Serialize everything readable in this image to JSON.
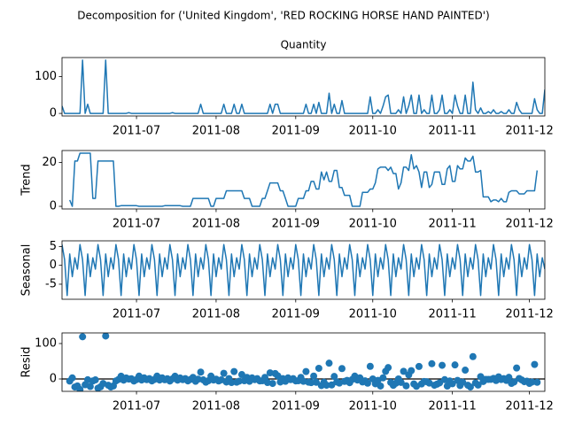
{
  "chart_data": [
    {
      "type": "line",
      "title": "Decomposition for ('United Kingdom', 'RED ROCKING HORSE HAND PAINTED')",
      "axes_title": "Quantity",
      "color": "#1f77b4",
      "x": [
        1,
        2,
        3,
        4,
        5,
        6,
        7,
        8,
        9,
        10,
        11,
        12,
        13,
        14,
        15,
        16,
        17,
        18,
        19,
        20,
        21,
        22,
        23,
        24,
        25,
        26,
        27,
        28,
        29,
        30,
        31,
        32,
        33,
        34,
        35,
        36,
        37,
        38,
        39,
        40,
        41,
        42,
        43,
        44,
        45,
        46,
        47,
        48,
        49,
        50,
        51,
        52,
        53,
        54,
        55,
        56,
        57,
        58,
        59,
        60,
        61,
        62,
        63,
        64,
        65,
        66,
        67,
        68,
        69,
        70,
        71,
        72,
        73,
        74,
        75,
        76,
        77,
        78,
        79,
        80,
        81,
        82,
        83,
        84,
        85,
        86,
        87,
        88,
        89,
        90,
        91,
        92,
        93,
        94,
        95,
        96,
        97,
        98,
        99,
        100,
        101,
        102,
        103,
        104,
        105,
        106,
        107,
        108,
        109,
        110,
        111,
        112,
        113,
        114,
        115,
        116,
        117,
        118,
        119,
        120,
        121,
        122,
        123,
        124,
        125,
        126,
        127,
        128,
        129,
        130,
        131,
        132,
        133,
        134,
        135,
        136,
        137,
        138,
        139,
        140,
        141,
        142,
        143,
        144,
        145,
        146,
        147,
        148,
        149,
        150,
        151,
        152,
        153,
        154,
        155,
        156,
        157,
        158,
        159,
        160,
        161,
        162,
        163,
        164,
        165,
        166,
        167,
        168,
        169,
        170,
        171,
        172,
        173,
        174,
        175,
        176,
        177,
        178,
        179,
        180,
        181,
        182,
        183,
        184,
        185,
        186,
        187,
        188,
        189
      ],
      "values": [
        20,
        0,
        0,
        0,
        0,
        0,
        0,
        0,
        145,
        0,
        25,
        0,
        0,
        0,
        0,
        0,
        0,
        145,
        0,
        0,
        0,
        0,
        0,
        0,
        0,
        0,
        2,
        0,
        0,
        0,
        0,
        0,
        0,
        0,
        0,
        0,
        0,
        0,
        0,
        0,
        0,
        0,
        0,
        2,
        0,
        0,
        0,
        0,
        0,
        0,
        0,
        0,
        0,
        0,
        25,
        0,
        0,
        0,
        0,
        0,
        0,
        0,
        0,
        25,
        0,
        0,
        0,
        25,
        0,
        0,
        25,
        0,
        0,
        0,
        0,
        0,
        0,
        0,
        0,
        0,
        0,
        25,
        0,
        25,
        25,
        0,
        0,
        0,
        0,
        0,
        0,
        0,
        0,
        0,
        0,
        25,
        0,
        0,
        25,
        0,
        30,
        0,
        0,
        0,
        55,
        0,
        25,
        0,
        0,
        35,
        0,
        0,
        0,
        0,
        0,
        0,
        0,
        0,
        0,
        0,
        45,
        0,
        0,
        10,
        0,
        20,
        45,
        50,
        0,
        0,
        0,
        10,
        0,
        45,
        0,
        20,
        50,
        0,
        0,
        50,
        0,
        10,
        0,
        0,
        50,
        0,
        0,
        10,
        50,
        0,
        0,
        10,
        0,
        50,
        20,
        0,
        0,
        50,
        0,
        0,
        85,
        10,
        0,
        15,
        0,
        0,
        5,
        0,
        10,
        0,
        0,
        5,
        0,
        0,
        10,
        0,
        0,
        30,
        10,
        0,
        0,
        0,
        0,
        0,
        40,
        10,
        0,
        0,
        65
      ],
      "xlim": [
        1,
        189
      ],
      "xticks": [
        {
          "value": 30,
          "label": "2011-07"
        },
        {
          "value": 61,
          "label": "2011-08"
        },
        {
          "value": 92,
          "label": "2011-09"
        },
        {
          "value": 122,
          "label": "2011-10"
        },
        {
          "value": 153,
          "label": "2011-11"
        },
        {
          "value": 183,
          "label": "2011-12"
        }
      ],
      "ylim": [
        -7,
        152
      ],
      "yticks": [
        0,
        100
      ]
    },
    {
      "type": "line",
      "ylabel": "Trend",
      "color": "#1f77b4",
      "values": [
        null,
        null,
        null,
        2.9,
        0,
        20.7,
        20.7,
        24.3,
        24.3,
        24.3,
        24.3,
        24.3,
        3.6,
        3.6,
        20.7,
        20.7,
        20.7,
        20.7,
        20.7,
        20.7,
        20.7,
        0,
        0,
        0.3,
        0.3,
        0.3,
        0.3,
        0.3,
        0.3,
        0.3,
        0,
        0,
        0,
        0,
        0,
        0,
        0,
        0,
        0,
        0,
        0.3,
        0.3,
        0.3,
        0.3,
        0.3,
        0.3,
        0.3,
        0,
        0,
        0,
        0,
        3.6,
        3.6,
        3.6,
        3.6,
        3.6,
        3.6,
        3.6,
        0,
        0,
        3.6,
        3.6,
        3.6,
        3.6,
        7.1,
        7.1,
        7.1,
        7.1,
        7.1,
        7.1,
        7.1,
        3.6,
        3.6,
        3.6,
        0,
        0,
        0,
        0,
        3.6,
        3.6,
        7.1,
        10.7,
        10.7,
        10.7,
        10.7,
        7.1,
        7.1,
        3.6,
        0,
        0,
        0,
        0,
        3.6,
        3.6,
        3.6,
        7.1,
        7.1,
        11.4,
        11.4,
        7.9,
        7.9,
        15.7,
        12.1,
        15.7,
        11.4,
        11.4,
        16.4,
        16.4,
        8.6,
        8.6,
        5,
        5,
        5,
        0,
        0,
        0,
        0,
        6.4,
        6.4,
        6.4,
        7.9,
        7.9,
        10.7,
        17.1,
        17.9,
        17.9,
        17.9,
        16.4,
        17.9,
        15,
        15,
        7.9,
        10.7,
        17.9,
        17.9,
        16.4,
        23.6,
        17.1,
        18.6,
        15.7,
        8.6,
        15.7,
        15.7,
        8.6,
        10,
        15.7,
        15.7,
        15.7,
        10,
        10,
        17.1,
        18.6,
        11.4,
        11.4,
        18.6,
        17.1,
        17.1,
        22.1,
        20.7,
        20.7,
        22.9,
        15.7,
        15.7,
        16.4,
        4.3,
        4.3,
        4.3,
        2.1,
        2.9,
        2.9,
        2.1,
        3.6,
        2.1,
        2.1,
        6.4,
        7.1,
        7.1,
        7.1,
        5.7,
        5.7,
        5.7,
        7.1,
        7.1,
        7.1,
        7.1,
        16.4,
        null,
        null,
        null
      ],
      "ylim": [
        -1.2,
        25.5
      ],
      "yticks": [
        0,
        20
      ]
    },
    {
      "type": "line",
      "ylabel": "Seasonal",
      "color": "#1f77b4",
      "values": [
        5.5,
        1.5,
        -8,
        3,
        -3,
        2,
        -1,
        5.5,
        1.5,
        -8,
        3,
        -3,
        2,
        -1,
        5.5,
        1.5,
        -8,
        3,
        -3,
        2,
        -1,
        5.5,
        1.5,
        -8,
        3,
        -3,
        2,
        -1,
        5.5,
        1.5,
        -8,
        3,
        -3,
        2,
        -1,
        5.5,
        1.5,
        -8,
        3,
        -3,
        2,
        -1,
        5.5,
        1.5,
        -8,
        3,
        -3,
        2,
        -1,
        5.5,
        1.5,
        -8,
        3,
        -3,
        2,
        -1,
        5.5,
        1.5,
        -8,
        3,
        -3,
        2,
        -1,
        5.5,
        1.5,
        -8,
        3,
        -3,
        2,
        -1,
        5.5,
        1.5,
        -8,
        3,
        -3,
        2,
        -1,
        5.5,
        1.5,
        -8,
        3,
        -3,
        2,
        -1,
        5.5,
        1.5,
        -8,
        3,
        -3,
        2,
        -1,
        5.5,
        1.5,
        -8,
        3,
        -3,
        2,
        -1,
        5.5,
        1.5,
        -8,
        3,
        -3,
        2,
        -1,
        5.5,
        1.5,
        -8,
        3,
        -3,
        2,
        -1,
        5.5,
        1.5,
        -8,
        3,
        -3,
        2,
        -1,
        5.5,
        1.5,
        -8,
        3,
        -3,
        2,
        -1,
        5.5,
        1.5,
        -8,
        3,
        -3,
        2,
        -1,
        5.5,
        1.5,
        -8,
        3,
        -3,
        2,
        -1,
        5.5,
        1.5,
        -8,
        3,
        -3,
        2,
        -1,
        5.5,
        1.5,
        -8,
        3,
        -3,
        2,
        -1,
        5.5,
        1.5,
        -8,
        3,
        -3,
        2,
        -1,
        5.5,
        1.5,
        -8,
        3,
        -3,
        2,
        -1,
        5.5,
        1.5,
        -8,
        3,
        -3,
        2,
        -1,
        5.5,
        1.5,
        -8,
        3,
        -3,
        2,
        -1,
        5.5,
        1.5,
        -8,
        3,
        -3,
        2,
        -1
      ],
      "ylim": [
        -9,
        6.5
      ],
      "yticks": [
        -5,
        0,
        5
      ]
    },
    {
      "type": "scatter",
      "ylabel": "Resid",
      "color": "#1f77b4",
      "values": [
        null,
        null,
        null,
        -5.9,
        3,
        -22.7,
        -19.7,
        -29.8,
        119.2,
        -16.3,
        -2.3,
        -21.3,
        -5.6,
        -2.6,
        -26.2,
        -22.2,
        -12.7,
        121.3,
        -17.7,
        -22.7,
        -19.7,
        -5.5,
        -1.5,
        7.7,
        -3.3,
        2.7,
        -0.3,
        0.7,
        -5.8,
        -1.8,
        8,
        -3,
        3,
        -2,
        1,
        -5.5,
        -1.5,
        8,
        -3,
        3,
        -2.3,
        0.7,
        -5.8,
        0.2,
        7.7,
        -3.3,
        2.7,
        -2,
        1,
        -5.5,
        -1.5,
        4.4,
        -6.6,
        -0.6,
        19.4,
        -2.6,
        -9.1,
        -5.1,
        8,
        -3,
        -0.6,
        -5.6,
        -2.6,
        15.9,
        -8.6,
        0.9,
        -10.1,
        20.9,
        -9.1,
        -6.1,
        12.4,
        -5.1,
        4.4,
        -6.6,
        3,
        -2,
        1,
        -5.5,
        -5.1,
        4.4,
        -10.1,
        17.3,
        -12.7,
        15.3,
        8.8,
        -8.6,
        0.9,
        -6.6,
        3,
        -2,
        1,
        -5.5,
        -5.1,
        4.4,
        -6.6,
        20.9,
        -9.1,
        -10.4,
        8.1,
        -9.4,
        30.1,
        -18.7,
        -9.1,
        -17.7,
        44.6,
        -16.9,
        7.1,
        -8.4,
        -11.6,
        29.4,
        -7,
        -4,
        -10.5,
        -1.5,
        8,
        -3,
        3,
        -8.4,
        -5.4,
        -11.9,
        35.6,
        0.1,
        -13.7,
        -4.1,
        -19.9,
        3.1,
        21.6,
        32.1,
        -9.9,
        -18,
        -12,
        0.1,
        -9.7,
        21.6,
        -19.4,
        11.6,
        23.4,
        -14.1,
        -20.6,
        35.3,
        -14.1,
        -7.2,
        -7.7,
        -11.6,
        43,
        -17.7,
        -14.7,
        -11.2,
        38.5,
        -2,
        -20.1,
        -5.6,
        -13.4,
        39.6,
        -4.1,
        -18.6,
        -9.1,
        24.9,
        -17.7,
        -22.7,
        63.1,
        -11.2,
        -17.2,
        6.6,
        -7.3,
        -1.3,
        -1.3,
        -1.1,
        1.6,
        -4.4,
        5.9,
        -1.6,
        0.9,
        -4.1,
        4.6,
        -12.6,
        -8.6,
        30.9,
        1.3,
        -2.7,
        -7.7,
        -6.1,
        -12.6,
        -8.6,
        40.9,
        -9.4,
        null,
        null,
        null
      ],
      "ylim": [
        -35,
        130
      ],
      "yticks": [
        0,
        100
      ]
    }
  ]
}
